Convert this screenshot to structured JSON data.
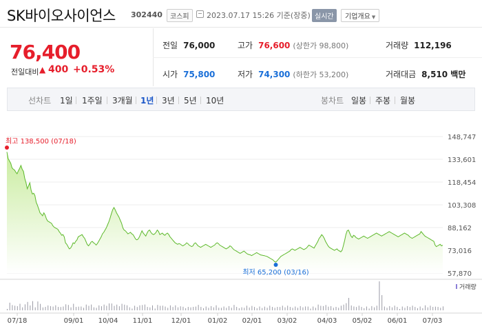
{
  "header": {
    "title": "SK바이오사이언스",
    "code": "302440",
    "market": "코스피",
    "timestamp": "2023.07.17 15:26 기준(장중)",
    "realtime_label": "실시간",
    "overview_label": "기업개요"
  },
  "quote": {
    "price": "76,400",
    "change_label": "전일대비",
    "change_value": "400",
    "change_pct": "+0.53%",
    "prev_close_label": "전일",
    "prev_close": "76,000",
    "high_label": "고가",
    "high": "76,600",
    "upper_limit": "(상한가 98,800)",
    "volume_label": "거래량",
    "volume": "112,196",
    "open_label": "시가",
    "open": "75,800",
    "low_label": "저가",
    "low": "74,300",
    "lower_limit": "(하한가 53,200)",
    "turnover_label": "거래대금",
    "turnover": "8,510 백만"
  },
  "periods": {
    "line_label": "선차트",
    "line_items": [
      "1일",
      "1주일",
      "3개월",
      "1년",
      "3년",
      "5년",
      "10년"
    ],
    "active": "1년",
    "candle_label": "봉차트",
    "candle_items": [
      "일봉",
      "주봉",
      "월봉"
    ]
  },
  "colors": {
    "up": "#e61e2b",
    "down": "#1a6fd8",
    "line": "#5cb82a",
    "fill_top": "#c9ec9f",
    "fill_bottom": "#ffffff"
  },
  "chart_data": {
    "type": "area",
    "title": "",
    "y_ticks": [
      "148,747",
      "133,601",
      "118,454",
      "103,308",
      "88,162",
      "73,016",
      "57,870"
    ],
    "ylim": [
      57870,
      148747
    ],
    "x_ticks": [
      "07/18",
      "09/01",
      "10/04",
      "11/01",
      "12/01",
      "01/02",
      "02/01",
      "03/02",
      "04/03",
      "05/02",
      "06/01",
      "07/03"
    ],
    "high_annotation": "최고 138,500 (07/18)",
    "low_annotation": "최저 65,200 (03/16)",
    "volume_label": "거래량",
    "grid": true,
    "legend": "none",
    "prices": [
      138500,
      134000,
      132500,
      131000,
      128000,
      127000,
      126500,
      125000,
      124000,
      126000,
      127500,
      129500,
      127000,
      125500,
      121000,
      118000,
      114000,
      116000,
      118000,
      113000,
      110500,
      111000,
      109500,
      105000,
      103000,
      100500,
      98000,
      97000,
      96000,
      98000,
      96500,
      94000,
      92500,
      92000,
      91500,
      91000,
      89500,
      88500,
      88000,
      87500,
      87000,
      85500,
      84500,
      83000,
      83500,
      82000,
      78000,
      77000,
      75500,
      74000,
      74500,
      76000,
      78000,
      77500,
      79000,
      80000,
      82000,
      82500,
      83000,
      83500,
      82000,
      81000,
      79000,
      77000,
      76000,
      77000,
      78500,
      79000,
      78000,
      77500,
      76500,
      77500,
      79000,
      80500,
      82000,
      84000,
      85000,
      86500,
      88000,
      90000,
      92000,
      94500,
      97500,
      100000,
      101500,
      100000,
      98000,
      96500,
      95000,
      93000,
      91000,
      88000,
      86500,
      86000,
      85000,
      84000,
      84500,
      85000,
      84000,
      83500,
      82000,
      80500,
      80000,
      80500,
      82000,
      84000,
      86000,
      84500,
      83500,
      82500,
      84500,
      86000,
      86500,
      85000,
      84000,
      83500,
      84000,
      85000,
      86500,
      85500,
      83500,
      84000,
      84500,
      83500,
      83000,
      84000,
      84500,
      83500,
      82000,
      81000,
      80000,
      79000,
      78000,
      77500,
      77000,
      77500,
      77200,
      76500,
      76000,
      76500,
      77000,
      78000,
      77500,
      76500,
      76000,
      75500,
      76000,
      77500,
      78000,
      77000,
      76000,
      75500,
      75000,
      75500,
      76000,
      76500,
      77000,
      76500,
      76000,
      75500,
      75000,
      75500,
      76000,
      76500,
      77500,
      78000,
      77500,
      76500,
      76000,
      75500,
      75000,
      74500,
      74000,
      74500,
      75000,
      76000,
      75500,
      74500,
      73500,
      73000,
      72500,
      72000,
      71500,
      71000,
      71500,
      72000,
      72500,
      71800,
      71000,
      70500,
      70200,
      70000,
      69500,
      70000,
      70500,
      71000,
      71500,
      71000,
      70500,
      70000,
      69800,
      69600,
      69500,
      69200,
      69000,
      68500,
      68000,
      67500,
      67000,
      66500,
      65500,
      65200,
      66000,
      67000,
      68000,
      69000,
      69500,
      70000,
      70500,
      71000,
      71500,
      72000,
      72500,
      73500,
      74000,
      73500,
      73000,
      73500,
      74000,
      74500,
      75000,
      74500,
      74000,
      73500,
      74000,
      74500,
      75500,
      76500,
      76000,
      75500,
      75000,
      74500,
      76000,
      77500,
      79000,
      81000,
      82000,
      83500,
      82500,
      81000,
      79000,
      77500,
      76000,
      75000,
      74500,
      74000,
      73500,
      73000,
      73500,
      74000,
      73000,
      72500,
      72000,
      73000,
      76000,
      79500,
      83500,
      86000,
      86500,
      84500,
      82500,
      81500,
      83000,
      82500,
      81500,
      81000,
      80500,
      81000,
      81500,
      82000,
      82500,
      82000,
      81500,
      81000,
      81500,
      82000,
      82500,
      83000,
      83500,
      84000,
      84500,
      84000,
      83500,
      83000,
      82500,
      83000,
      83500,
      84000,
      84500,
      85000,
      85500,
      85000,
      84500,
      84000,
      83500,
      83000,
      82500,
      82000,
      82500,
      83000,
      83500,
      84000,
      84500,
      84000,
      83500,
      83000,
      82000,
      81500,
      81000,
      81500,
      82000,
      82500,
      83000,
      83500,
      84000,
      85500,
      84500,
      83500,
      82500,
      82000,
      81500,
      81000,
      80500,
      80000,
      79500,
      79000,
      76500,
      75500,
      76000,
      76500,
      77000,
      76000,
      76400
    ]
  }
}
